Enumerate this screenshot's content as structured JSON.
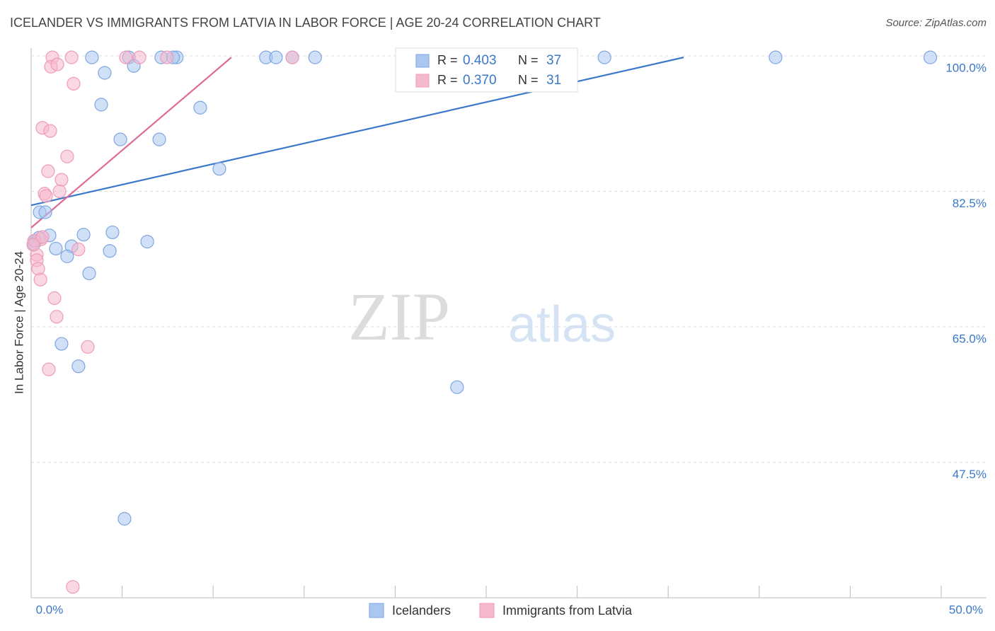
{
  "chart_data": {
    "type": "scatter",
    "title": "ICELANDER VS IMMIGRANTS FROM LATVIA IN LABOR FORCE | AGE 20-24 CORRELATION CHART",
    "source": "Source: ZipAtlas.com",
    "y_label": "In Labor Force | Age 20-24",
    "watermark": [
      "ZIP",
      "atlas"
    ],
    "xlim": [
      0,
      50
    ],
    "ylim": [
      30,
      101
    ],
    "xticks": [
      {
        "value": 0,
        "label": "0.0%"
      },
      {
        "value": 50,
        "label": "50.0%"
      }
    ],
    "x_minor_ticks": [
      5,
      10,
      15,
      20,
      25,
      30,
      35,
      40,
      45
    ],
    "yticks": [
      {
        "value": 47.5,
        "label": "47.5%"
      },
      {
        "value": 65,
        "label": "65.0%"
      },
      {
        "value": 82.5,
        "label": "82.5%"
      },
      {
        "value": 100,
        "label": "100.0%"
      }
    ],
    "grid": true,
    "stat_labels": {
      "r": "R =",
      "n": "N ="
    },
    "series": [
      {
        "name": "Icelanders",
        "color": "#a9c7f0",
        "stroke": "#7ea6e0",
        "line_color": "#3a78c9",
        "r_label": "0.403",
        "n": 37,
        "x": [
          3.34,
          5.37,
          7.15,
          8.0,
          7.8,
          12.9,
          13.45,
          14.35,
          15.6,
          31.5,
          40.9,
          49.4,
          4.04,
          5.64,
          3.85,
          9.29,
          4.9,
          7.04,
          10.34,
          0.47,
          0.78,
          1.01,
          2.88,
          4.47,
          6.38,
          2.22,
          1.36,
          4.32,
          1.98,
          3.19,
          0.16,
          1.67,
          2.6,
          23.4,
          5.13,
          0.23,
          0.43
        ],
        "values": [
          99.8,
          99.8,
          99.8,
          99.8,
          99.8,
          99.8,
          99.8,
          99.8,
          99.8,
          99.8,
          99.8,
          99.8,
          97.8,
          98.7,
          93.7,
          93.3,
          89.2,
          89.2,
          85.4,
          79.8,
          79.8,
          76.8,
          76.9,
          77.2,
          76.0,
          75.4,
          75.1,
          74.8,
          74.1,
          71.9,
          75.7,
          62.8,
          59.9,
          57.2,
          40.2,
          76.1,
          76.5
        ],
        "trend": {
          "x": [
            0,
            35.85
          ],
          "y": [
            80.7,
            99.8
          ]
        }
      },
      {
        "name": "Immigrants from Latvia",
        "color": "#f6b8cc",
        "stroke": "#ee9bb8",
        "line_color": "#e0699a",
        "r_label": "0.370",
        "n": 31,
        "x": [
          1.17,
          2.22,
          5.21,
          5.95,
          7.46,
          14.35,
          1.09,
          1.44,
          2.33,
          0.62,
          1.05,
          1.98,
          0.93,
          1.67,
          1.56,
          0.74,
          0.82,
          0.54,
          0.16,
          2.6,
          0.31,
          0.31,
          0.39,
          0.51,
          1.28,
          1.4,
          3.11,
          0.97,
          2.29,
          0.12,
          0.62
        ],
        "values": [
          99.8,
          99.8,
          99.8,
          99.8,
          99.8,
          99.8,
          98.6,
          98.9,
          96.4,
          90.7,
          90.3,
          87.0,
          85.1,
          84.0,
          82.5,
          82.2,
          81.9,
          76.3,
          76.1,
          75.0,
          74.3,
          73.6,
          72.5,
          71.1,
          68.7,
          66.3,
          62.4,
          59.5,
          31.4,
          75.6,
          76.6
        ],
        "trend": {
          "x": [
            0,
            11.0
          ],
          "y": [
            77.8,
            99.8
          ]
        }
      }
    ]
  }
}
